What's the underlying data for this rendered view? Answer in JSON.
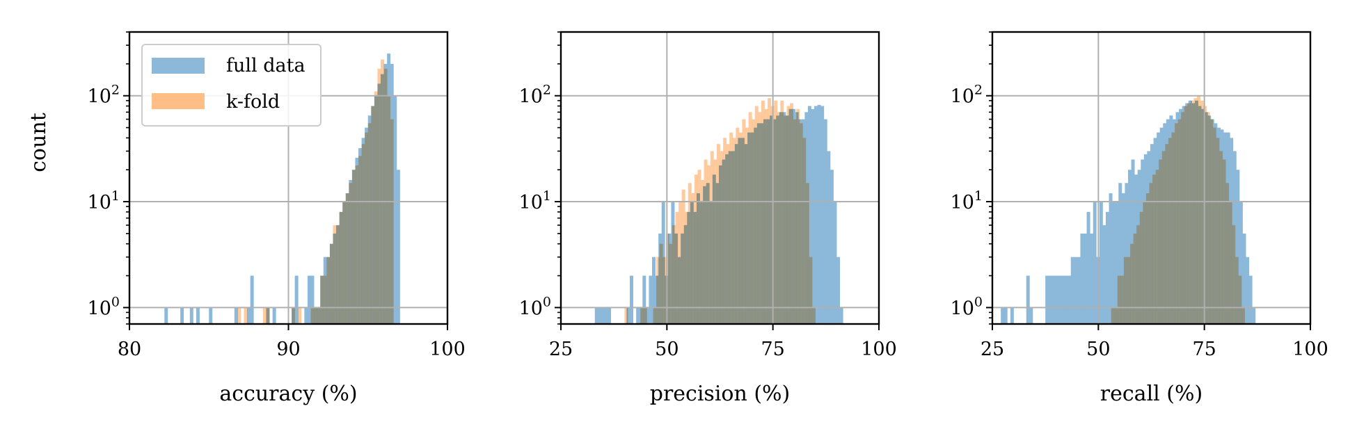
{
  "figure": {
    "ylabel": "count",
    "legend": {
      "placement": "upper-left of first panel",
      "entries": [
        {
          "label": "full data",
          "color": "#8cb9d9"
        },
        {
          "label": "k-fold",
          "color": "#ffbe86"
        }
      ]
    }
  },
  "chart_data": [
    {
      "type": "histogram",
      "xlabel": "accuracy (%)",
      "xlim": [
        80,
        100
      ],
      "xticks": [
        "80",
        "90",
        "100"
      ],
      "yscale": "log",
      "ylim": [
        0.7,
        400
      ],
      "yticks": [
        {
          "base": "10",
          "exp": "0",
          "value": 1
        },
        {
          "base": "10",
          "exp": "1",
          "value": 10
        },
        {
          "base": "10",
          "exp": "2",
          "value": 100
        }
      ],
      "grid": true,
      "series": [
        {
          "name": "full data",
          "color": "#8cb9d9",
          "x_start": 82.2,
          "bin_width": 0.2,
          "shift_bins": 0,
          "counts": [
            1,
            0,
            0,
            0,
            0,
            1,
            0,
            0,
            1,
            0,
            1,
            0,
            0,
            0,
            1,
            0,
            0,
            0,
            0,
            0,
            0,
            0,
            1,
            0,
            0,
            0,
            1,
            2,
            0,
            0,
            0,
            0,
            1,
            0,
            1,
            0,
            0,
            0,
            0,
            0,
            1,
            2,
            0,
            0,
            1,
            2,
            2,
            1,
            1,
            2,
            3,
            3,
            4,
            5,
            6,
            8,
            10,
            12,
            16,
            20,
            26,
            32,
            40,
            50,
            65,
            80,
            100,
            130,
            160,
            200,
            250,
            200,
            100,
            20
          ]
        },
        {
          "name": "k-fold",
          "color": "#ffbe86",
          "x_start": 86.8,
          "bin_width": 0.2,
          "shift_bins": 0,
          "counts": [
            1,
            0,
            1,
            0,
            0,
            0,
            0,
            0,
            1,
            1,
            0,
            0,
            0,
            0,
            0,
            0,
            0,
            1,
            0,
            1,
            0,
            0,
            0,
            1,
            1,
            1,
            2,
            2,
            3,
            4,
            6,
            6,
            8,
            10,
            12,
            15,
            20,
            22,
            27,
            35,
            45,
            55,
            80,
            110,
            180,
            220,
            180,
            100,
            60,
            0
          ]
        }
      ]
    },
    {
      "type": "histogram",
      "xlabel": "precision (%)",
      "xlim": [
        25,
        100
      ],
      "xticks": [
        "25",
        "50",
        "75",
        "100"
      ],
      "yscale": "log",
      "ylim": [
        0.7,
        400
      ],
      "yticks": [
        {
          "base": "10",
          "exp": "0",
          "value": 1
        },
        {
          "base": "10",
          "exp": "1",
          "value": 10
        },
        {
          "base": "10",
          "exp": "2",
          "value": 100
        }
      ],
      "grid": true,
      "series": [
        {
          "name": "full data",
          "color": "#8cb9d9",
          "x_start": 33,
          "bin_width": 0.75,
          "shift_bins": 0,
          "counts": [
            1,
            1,
            1,
            1,
            1,
            0,
            0,
            0,
            0,
            0,
            1,
            2,
            0,
            1,
            1,
            2,
            1,
            2,
            3,
            2,
            5,
            10,
            2,
            5,
            10,
            5,
            3,
            5,
            6,
            8,
            10,
            8,
            12,
            10,
            14,
            15,
            10,
            18,
            15,
            22,
            25,
            28,
            30,
            30,
            35,
            40,
            40,
            35,
            45,
            45,
            50,
            55,
            55,
            60,
            60,
            65,
            60,
            65,
            70,
            70,
            65,
            75,
            75,
            70,
            60,
            60,
            70,
            80,
            75,
            80,
            82,
            80,
            60,
            30,
            20,
            10,
            3,
            1
          ]
        },
        {
          "name": "k-fold",
          "color": "#ffbe86",
          "x_start": 40,
          "bin_width": 0.75,
          "shift_bins": 0,
          "counts": [
            1,
            0,
            0,
            0,
            0,
            1,
            1,
            0,
            0,
            1,
            3,
            4,
            3,
            5,
            4,
            6,
            8,
            10,
            13,
            8,
            15,
            12,
            18,
            20,
            16,
            25,
            22,
            30,
            25,
            35,
            30,
            40,
            35,
            45,
            40,
            50,
            45,
            60,
            50,
            70,
            60,
            80,
            70,
            90,
            75,
            95,
            80,
            90,
            70,
            90,
            65,
            80,
            85,
            60,
            75,
            55,
            40,
            15,
            3,
            1
          ]
        }
      ]
    },
    {
      "type": "histogram",
      "xlabel": "recall (%)",
      "xlim": [
        25,
        100
      ],
      "xticks": [
        "25",
        "50",
        "75",
        "100"
      ],
      "yscale": "log",
      "ylim": [
        0.7,
        400
      ],
      "yticks": [
        {
          "base": "10",
          "exp": "0",
          "value": 1
        },
        {
          "base": "10",
          "exp": "1",
          "value": 10
        },
        {
          "base": "10",
          "exp": "2",
          "value": 100
        }
      ],
      "grid": true,
      "series": [
        {
          "name": "full data",
          "color": "#8cb9d9",
          "x_start": 27,
          "bin_width": 0.75,
          "shift_bins": 0,
          "counts": [
            1,
            1,
            0,
            1,
            0,
            0,
            0,
            0,
            2,
            1,
            0,
            0,
            0,
            0,
            2,
            2,
            2,
            2,
            2,
            2,
            2,
            2,
            3,
            3,
            3,
            5,
            5,
            8,
            5,
            10,
            3,
            10,
            6,
            8,
            12,
            10,
            10,
            15,
            12,
            15,
            20,
            25,
            18,
            20,
            25,
            28,
            30,
            35,
            40,
            45,
            50,
            55,
            60,
            65,
            60,
            70,
            75,
            80,
            85,
            90,
            85,
            90,
            80,
            75,
            70,
            65,
            60,
            55,
            50,
            48,
            45,
            45,
            40,
            30,
            20,
            10,
            5,
            3,
            2,
            1
          ]
        },
        {
          "name": "k-fold",
          "color": "#ffbe86",
          "x_start": 53,
          "bin_width": 0.75,
          "shift_bins": 0,
          "counts": [
            1,
            1,
            2,
            2,
            3,
            3,
            4,
            5,
            6,
            8,
            10,
            12,
            15,
            18,
            20,
            25,
            30,
            35,
            40,
            45,
            55,
            60,
            70,
            80,
            85,
            90,
            95,
            100,
            90,
            80,
            70,
            60,
            50,
            40,
            30,
            25,
            15,
            10,
            6,
            3,
            2,
            1,
            0
          ]
        }
      ]
    }
  ]
}
